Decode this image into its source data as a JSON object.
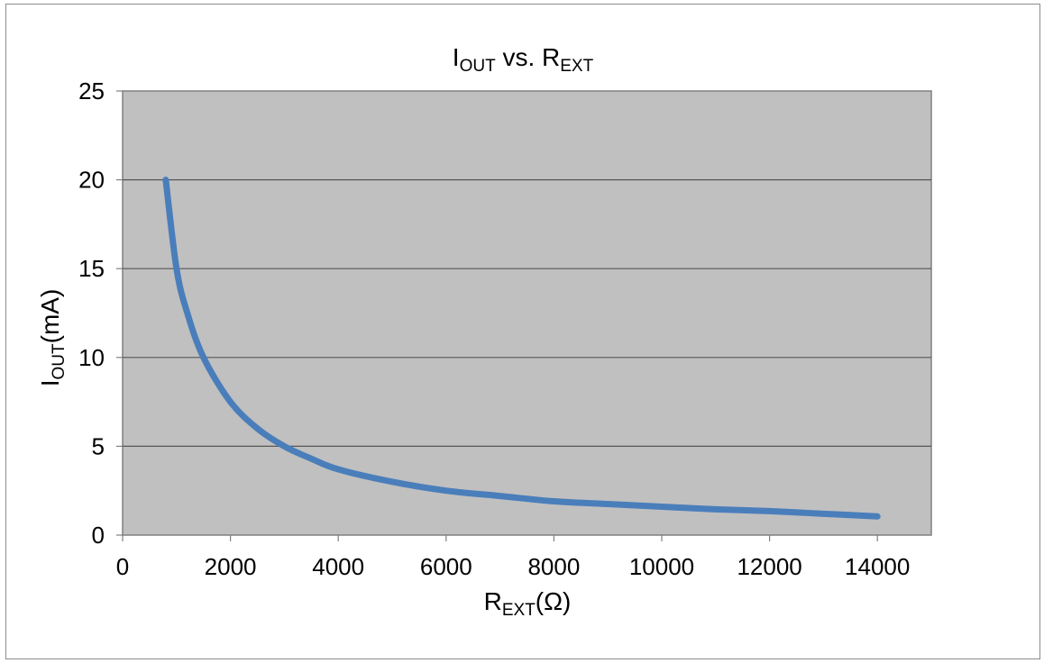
{
  "chart_data": {
    "type": "line",
    "title": {
      "main": "I",
      "sub1": "OUT",
      "mid": " vs. R",
      "sub2": "EXT"
    },
    "xlabel": {
      "main": "R",
      "sub": "EXT",
      "tail": "(Ω)"
    },
    "ylabel": {
      "main": "I",
      "sub": "OUT",
      "tail": "(mA)"
    },
    "xlim": [
      0,
      15000
    ],
    "ylim": [
      0,
      25
    ],
    "x_ticks": [
      0,
      2000,
      4000,
      6000,
      8000,
      10000,
      12000,
      14000
    ],
    "y_ticks": [
      0,
      5,
      10,
      15,
      20,
      25
    ],
    "grid": {
      "horizontal": true,
      "vertical": false
    },
    "plot_background": "#c0c0c0",
    "series": [
      {
        "color": "#4a7ebb",
        "x": [
          800,
          1000,
          1200,
          1500,
          2000,
          2500,
          3000,
          3500,
          4000,
          5000,
          6000,
          7000,
          8000,
          9000,
          10000,
          11000,
          12000,
          13000,
          14000
        ],
        "y": [
          20,
          15,
          12.5,
          10,
          7.5,
          6,
          5,
          4.3,
          3.7,
          3,
          2.5,
          2.2,
          1.9,
          1.75,
          1.6,
          1.45,
          1.35,
          1.2,
          1.05
        ]
      }
    ]
  }
}
